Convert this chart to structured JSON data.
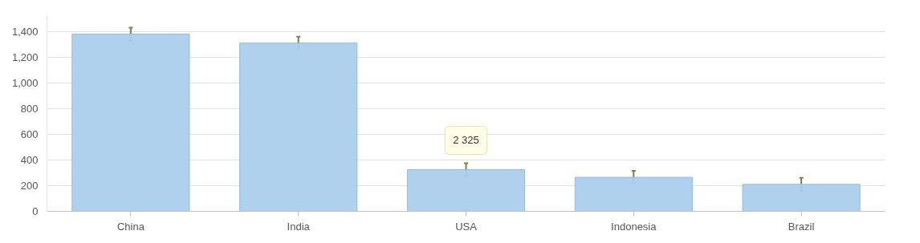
{
  "chart_data": {
    "type": "bar",
    "categories": [
      "China",
      "India",
      "USA",
      "Indonesia",
      "Brazil"
    ],
    "series": [
      {
        "color": "#abcfed",
        "values": [
          1380,
          1310,
          325,
          265,
          210
        ],
        "errors": [
          50,
          50,
          50,
          50,
          50
        ]
      }
    ],
    "ylim": [
      0,
      1530
    ],
    "yticks": [
      0,
      {
        "value": 200,
        "label": "200"
      },
      {
        "value": 400,
        "label": "400"
      },
      {
        "value": 600,
        "label": "600"
      },
      {
        "value": 800,
        "label": "800"
      },
      {
        "value": 1000,
        "label": "1,000"
      },
      {
        "value": 1200,
        "label": "1,200"
      },
      {
        "value": 1400,
        "label": "1,400"
      }
    ],
    "grid": "y",
    "annotations": [
      "2 325"
    ]
  }
}
